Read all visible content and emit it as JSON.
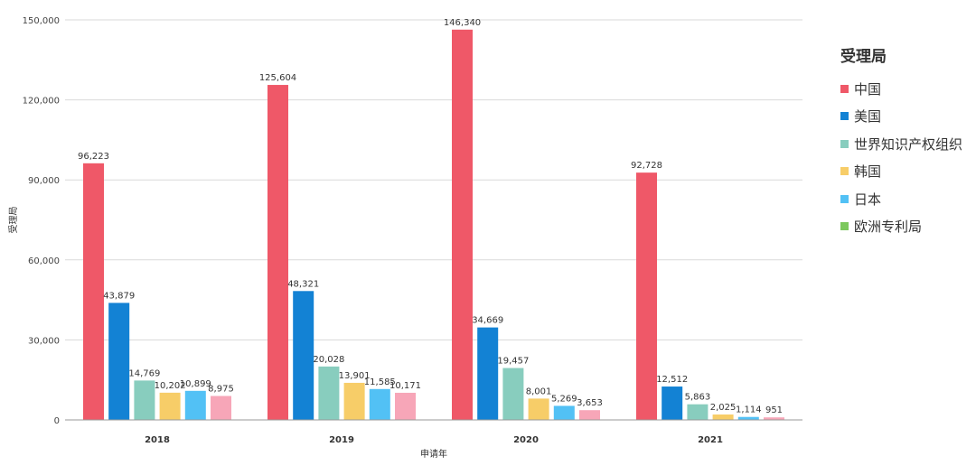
{
  "chart_data": {
    "type": "bar",
    "categories": [
      "2018",
      "2019",
      "2020",
      "2021"
    ],
    "series": [
      {
        "name": "中国",
        "color": "#EF5868",
        "values": [
          96223,
          125604,
          146340,
          92728
        ]
      },
      {
        "name": "美国",
        "color": "#1382D4",
        "values": [
          43879,
          48321,
          34669,
          12512
        ]
      },
      {
        "name": "世界知识产权组织",
        "color": "#88CDBE",
        "values": [
          14769,
          20028,
          19457,
          5863
        ]
      },
      {
        "name": "韩国",
        "color": "#F7CD68",
        "values": [
          10202,
          13901,
          8001,
          2025
        ]
      },
      {
        "name": "日本",
        "color": "#52C1F5",
        "values": [
          10899,
          11585,
          5269,
          1114
        ]
      },
      {
        "name": "欧洲专利局",
        "color": "#7CC85D",
        "values": [
          null,
          null,
          null,
          null
        ]
      },
      {
        "name": "",
        "color": "#F7A6B8",
        "values": [
          8975,
          10171,
          3653,
          951
        ]
      }
    ],
    "data_labels": [
      [
        "96,223",
        "125,604",
        "146,340",
        "92,728"
      ],
      [
        "43,879",
        "48,321",
        "34,669",
        "12,512"
      ],
      [
        "14,769",
        "20,028",
        "19,457",
        "5,863"
      ],
      [
        "10,202",
        "13,901",
        "8,001",
        "2,025"
      ],
      [
        "10,899",
        "11,585",
        "5,269",
        "1,114"
      ],
      [
        "",
        "",
        "",
        ""
      ],
      [
        "8,975",
        "10,171",
        "3,653",
        "951"
      ]
    ],
    "ylim": [
      0,
      150000
    ],
    "yticks": [
      0,
      30000,
      60000,
      90000,
      120000,
      150000
    ],
    "ytick_labels": [
      "0",
      "30,000",
      "60,000",
      "90,000",
      "120,000",
      "150,000"
    ],
    "xlabel": "申请年",
    "ylabel": "受理局",
    "legend_title": "受理局",
    "legend_position": "right",
    "grid": true
  }
}
